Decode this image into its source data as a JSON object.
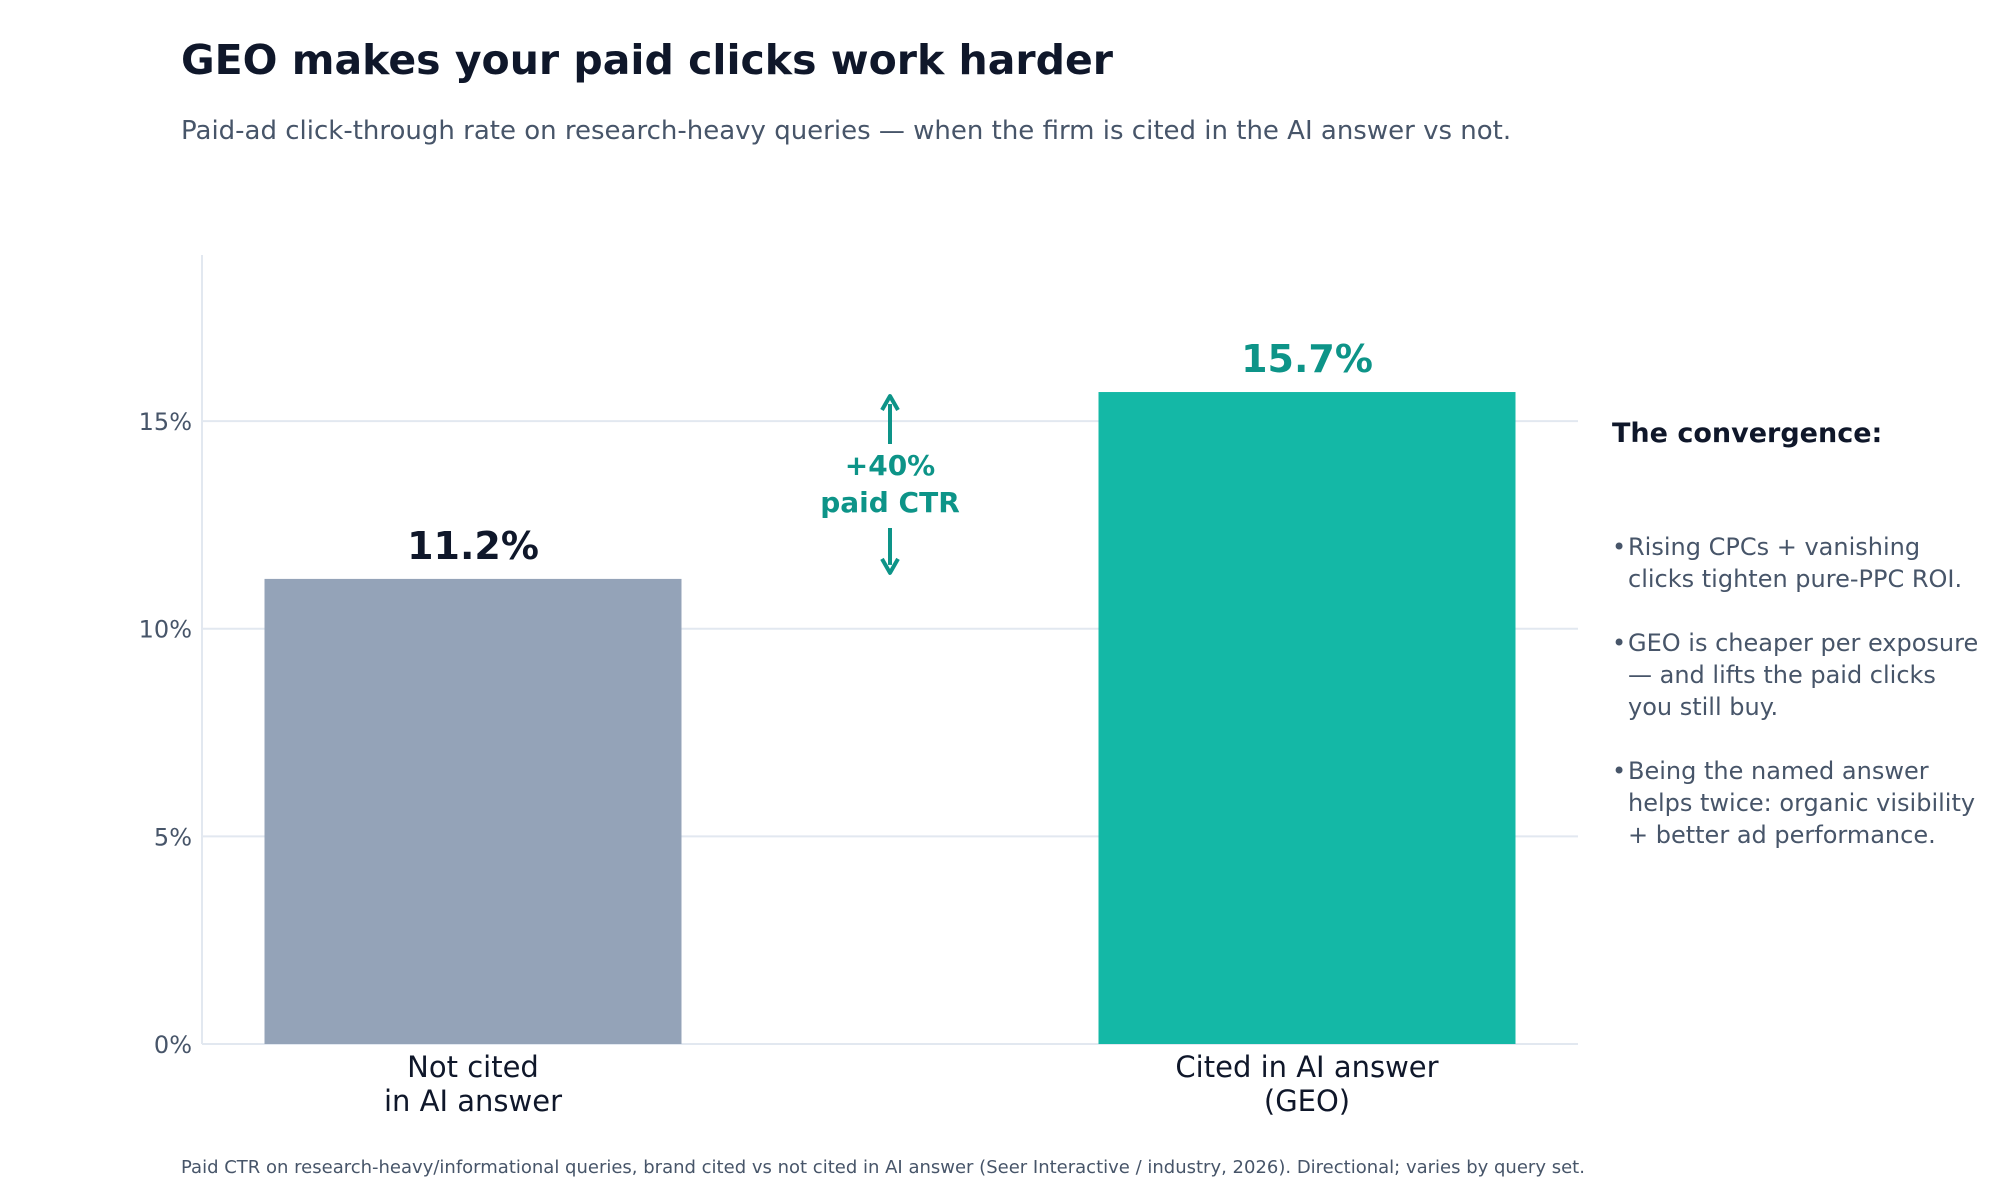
{
  "title": "GEO makes your paid clicks work harder",
  "subtitle": "Paid-ad click-through rate on research-heavy queries — when the firm is cited in the AI answer vs not.",
  "chart_data": {
    "type": "bar",
    "categories": [
      [
        "Not cited",
        "in AI answer"
      ],
      [
        "Cited in AI answer",
        "(GEO)"
      ]
    ],
    "values": [
      11.2,
      15.7
    ],
    "value_labels": [
      "11.2%",
      "15.7%"
    ],
    "bar_colors": [
      "#94a3b8",
      "#14b8a6"
    ],
    "value_label_colors": [
      "#0f172a",
      "#0d9488"
    ],
    "ylim": [
      0,
      19
    ],
    "yticks": [
      0,
      5,
      10,
      15
    ],
    "ytick_labels": [
      "0%",
      "5%",
      "10%",
      "15%"
    ],
    "grid": true,
    "annotation": {
      "lines": [
        "+40%",
        "paid CTR"
      ],
      "color": "#0d9488",
      "from_value": 11.2,
      "to_value": 15.7
    },
    "xlabel": "",
    "ylabel": ""
  },
  "side_panel": {
    "heading": "The convergence:",
    "bullets": [
      "Rising CPCs + vanishing clicks tighten pure-PPC ROI.",
      "GEO is cheaper per exposure — and lifts the paid clicks you still buy.",
      "Being the named answer helps twice: organic visibility + better ad performance."
    ]
  },
  "footnote": "Paid CTR on research-heavy/informational queries, brand cited vs not cited in AI answer (Seer Interactive / industry, 2026). Directional; varies by query set.",
  "colors": {
    "text_dark": "#0f172a",
    "text_muted": "#475569",
    "grid": "#e2e8f0",
    "accent": "#0d9488"
  }
}
